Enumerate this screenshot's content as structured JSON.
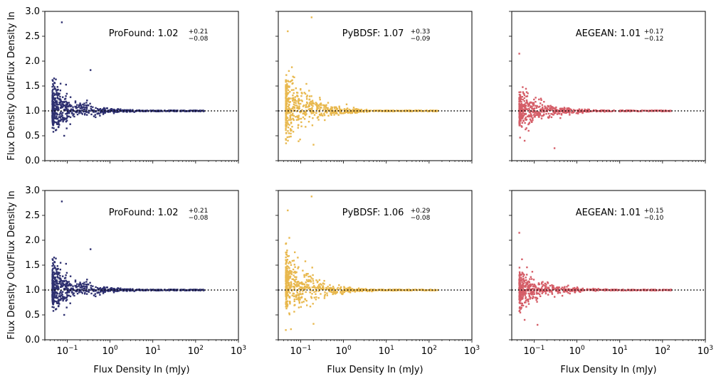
{
  "figure": {
    "ylabel": "Flux Density Out/Flux Density In",
    "xlabel": "Flux Density In (mJy)"
  },
  "colors": {
    "ProFound": "#2e3070",
    "PyBDSF": "#e8b84e",
    "AEGEAN": "#d55e68"
  },
  "chart_data": [
    {
      "type": "scatter",
      "row": 0,
      "col": 0,
      "series": "ProFound",
      "annotation": {
        "name": "ProFound",
        "value": "1.02",
        "plus": "+0.21",
        "minus": "−0.08"
      },
      "xscale": "log",
      "xlim": [
        0.03,
        1000
      ],
      "ylim": [
        0.0,
        3.0
      ],
      "reference_line": 1.0,
      "xticks": [
        {
          "v": 0.1,
          "e": "−1"
        },
        {
          "v": 1,
          "e": "0"
        },
        {
          "v": 10,
          "e": "1"
        },
        {
          "v": 100,
          "e": "2"
        },
        {
          "v": 1000,
          "e": "3"
        }
      ],
      "yticks": [
        "0.0",
        "0.5",
        "1.0",
        "1.5",
        "2.0",
        "2.5",
        "3.0"
      ],
      "n_points": 700,
      "seed": 101,
      "spread": 0.9,
      "bias": 0.1,
      "outliers": [
        [
          0.075,
          2.78
        ],
        [
          0.35,
          1.82
        ],
        [
          0.085,
          0.5
        ]
      ]
    },
    {
      "type": "scatter",
      "row": 0,
      "col": 1,
      "series": "PyBDSF",
      "annotation": {
        "name": "PyBDSF",
        "value": "1.07",
        "plus": "+0.33",
        "minus": "−0.09"
      },
      "xscale": "log",
      "xlim": [
        0.03,
        1000
      ],
      "ylim": [
        0.0,
        3.0
      ],
      "reference_line": 1.0,
      "xticks": [
        {
          "v": 0.1,
          "e": "−1"
        },
        {
          "v": 1,
          "e": "0"
        },
        {
          "v": 10,
          "e": "1"
        },
        {
          "v": 100,
          "e": "2"
        },
        {
          "v": 1000,
          "e": "3"
        }
      ],
      "yticks": [
        "0.0",
        "0.5",
        "1.0",
        "1.5",
        "2.0",
        "2.5",
        "3.0"
      ],
      "n_points": 700,
      "seed": 202,
      "spread": 1.3,
      "bias": 0.18,
      "outliers": [
        [
          0.18,
          2.88
        ],
        [
          0.05,
          2.6
        ],
        [
          0.2,
          0.32
        ]
      ]
    },
    {
      "type": "scatter",
      "row": 0,
      "col": 2,
      "series": "AEGEAN",
      "annotation": {
        "name": "AEGEAN",
        "value": "1.01",
        "plus": "+0.17",
        "minus": "−0.12"
      },
      "xscale": "log",
      "xlim": [
        0.03,
        1000
      ],
      "ylim": [
        0.0,
        3.0
      ],
      "reference_line": 1.0,
      "xticks": [
        {
          "v": 0.1,
          "e": "−1"
        },
        {
          "v": 1,
          "e": "0"
        },
        {
          "v": 10,
          "e": "1"
        },
        {
          "v": 100,
          "e": "2"
        },
        {
          "v": 1000,
          "e": "3"
        }
      ],
      "yticks": [
        "0.0",
        "0.5",
        "1.0",
        "1.5",
        "2.0",
        "2.5",
        "3.0"
      ],
      "n_points": 650,
      "seed": 303,
      "spread": 0.8,
      "bias": 0.0,
      "outliers": [
        [
          0.045,
          2.15
        ],
        [
          0.3,
          0.25
        ],
        [
          0.06,
          0.4
        ]
      ]
    },
    {
      "type": "scatter",
      "row": 1,
      "col": 0,
      "series": "ProFound",
      "annotation": {
        "name": "ProFound",
        "value": "1.02",
        "plus": "+0.21",
        "minus": "−0.08"
      },
      "xscale": "log",
      "xlim": [
        0.03,
        1000
      ],
      "ylim": [
        0.0,
        3.0
      ],
      "reference_line": 1.0,
      "xticks": [
        {
          "v": 0.1,
          "e": "−1"
        },
        {
          "v": 1,
          "e": "0"
        },
        {
          "v": 10,
          "e": "1"
        },
        {
          "v": 100,
          "e": "2"
        },
        {
          "v": 1000,
          "e": "3"
        }
      ],
      "yticks": [
        "0.0",
        "0.5",
        "1.0",
        "1.5",
        "2.0",
        "2.5",
        "3.0"
      ],
      "n_points": 700,
      "seed": 101,
      "spread": 0.9,
      "bias": 0.1,
      "outliers": [
        [
          0.075,
          2.78
        ],
        [
          0.35,
          1.82
        ],
        [
          0.085,
          0.5
        ]
      ]
    },
    {
      "type": "scatter",
      "row": 1,
      "col": 1,
      "series": "PyBDSF",
      "annotation": {
        "name": "PyBDSF",
        "value": "1.06",
        "plus": "+0.29",
        "minus": "−0.08"
      },
      "xscale": "log",
      "xlim": [
        0.03,
        1000
      ],
      "ylim": [
        0.0,
        3.0
      ],
      "reference_line": 1.0,
      "xticks": [
        {
          "v": 0.1,
          "e": "−1"
        },
        {
          "v": 1,
          "e": "0"
        },
        {
          "v": 10,
          "e": "1"
        },
        {
          "v": 100,
          "e": "2"
        },
        {
          "v": 1000,
          "e": "3"
        }
      ],
      "yticks": [
        "0.0",
        "0.5",
        "1.0",
        "1.5",
        "2.0",
        "2.5",
        "3.0"
      ],
      "n_points": 700,
      "seed": 404,
      "spread": 1.2,
      "bias": 0.16,
      "outliers": [
        [
          0.18,
          2.88
        ],
        [
          0.05,
          2.6
        ],
        [
          0.2,
          0.32
        ]
      ]
    },
    {
      "type": "scatter",
      "row": 1,
      "col": 2,
      "series": "AEGEAN",
      "annotation": {
        "name": "AEGEAN",
        "value": "1.01",
        "plus": "+0.15",
        "minus": "−0.10"
      },
      "xscale": "log",
      "xlim": [
        0.03,
        1000
      ],
      "ylim": [
        0.0,
        3.0
      ],
      "reference_line": 1.0,
      "xticks": [
        {
          "v": 0.1,
          "e": "−1"
        },
        {
          "v": 1,
          "e": "0"
        },
        {
          "v": 10,
          "e": "1"
        },
        {
          "v": 100,
          "e": "2"
        },
        {
          "v": 1000,
          "e": "3"
        }
      ],
      "yticks": [
        "0.0",
        "0.5",
        "1.0",
        "1.5",
        "2.0",
        "2.5",
        "3.0"
      ],
      "n_points": 650,
      "seed": 505,
      "spread": 0.75,
      "bias": 0.0,
      "outliers": [
        [
          0.045,
          2.15
        ],
        [
          0.12,
          0.3
        ],
        [
          0.06,
          0.4
        ]
      ]
    }
  ]
}
